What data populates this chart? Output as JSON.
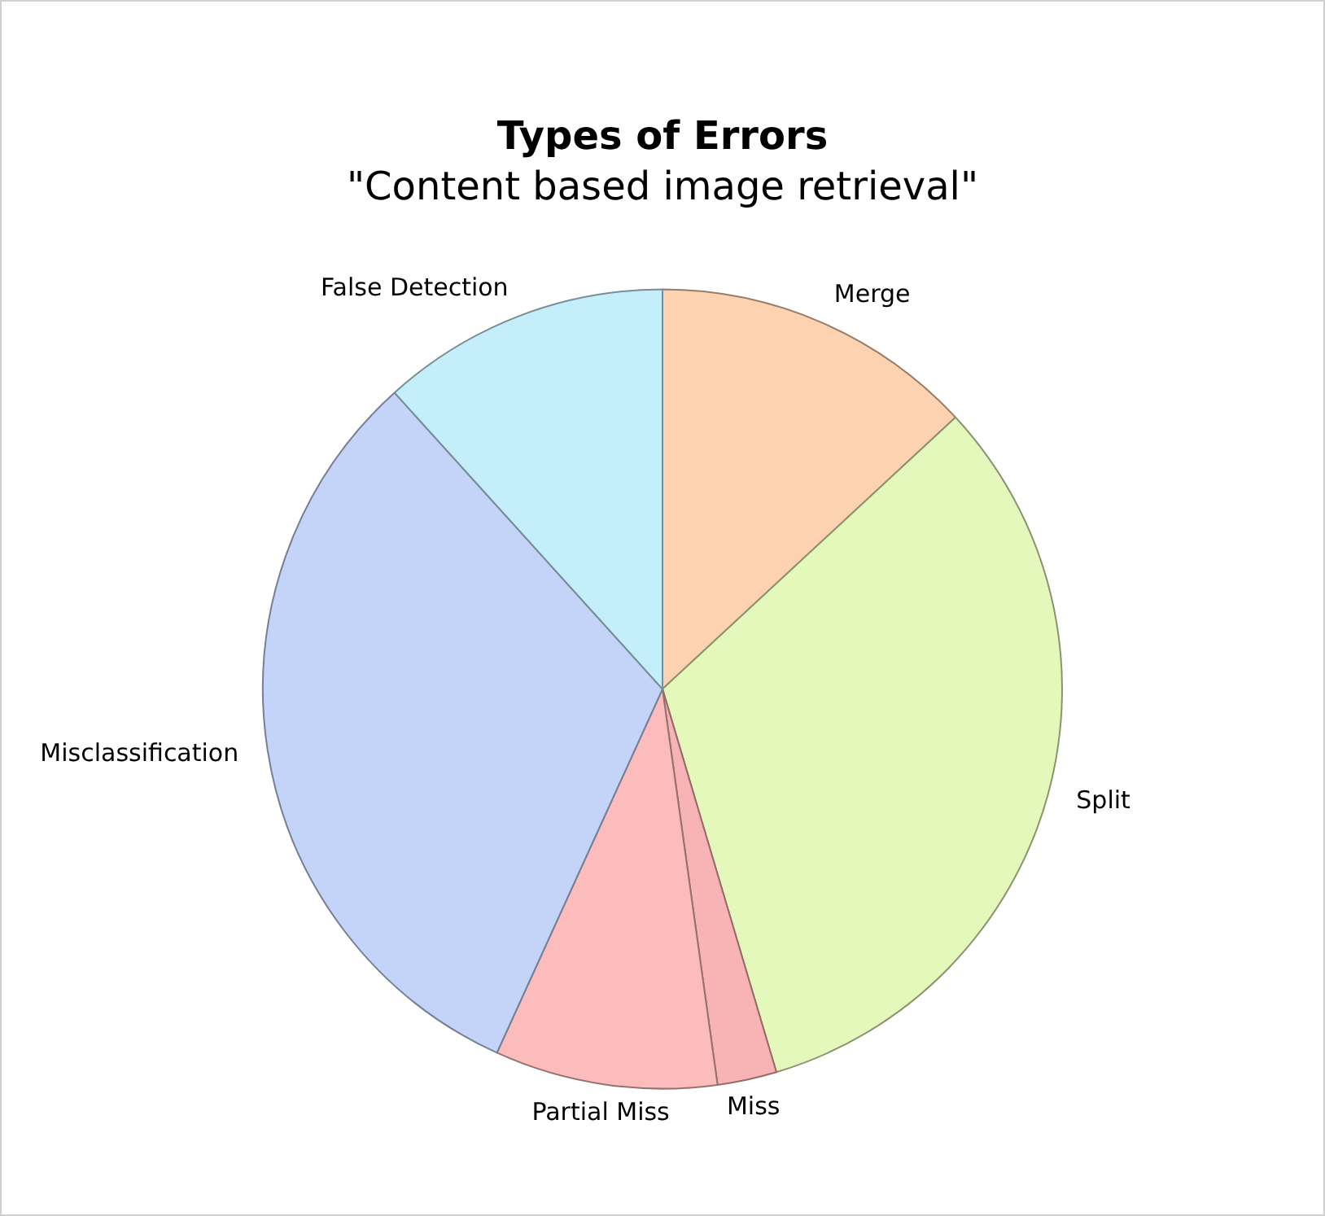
{
  "chart_data": {
    "type": "pie",
    "title": "Types of Errors",
    "subtitle": "\"Content based image retrieval\"",
    "categories": [
      "Merge",
      "Split",
      "Miss",
      "Partial Miss",
      "Misclassification",
      "False Detection"
    ],
    "values": [
      13.1,
      32.3,
      2.4,
      9.0,
      31.5,
      11.7
    ],
    "colors": [
      "#fcd2b0",
      "#e4f8bc",
      "#f8b4b4",
      "#fcbcbc",
      "#c4d4f8",
      "#c4eefa"
    ],
    "legend": false
  }
}
